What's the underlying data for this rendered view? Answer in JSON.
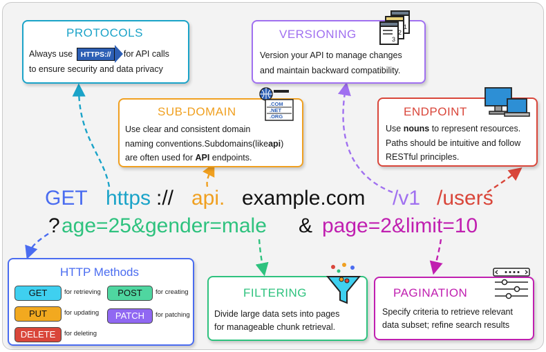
{
  "colors": {
    "protocols": "#1aa3c8",
    "subdomain": "#f0a020",
    "versioning": "#a070f0",
    "endpoint": "#d9463a",
    "methods": "#4a6cf0",
    "filtering": "#2ec27e",
    "pagination": "#c01fb0",
    "get_pill": "#3fd0f0",
    "post_pill": "#4fd6a0",
    "put_pill": "#f2a91f",
    "patch_pill": "#9068f2",
    "delete_pill": "#d9463a"
  },
  "url": {
    "method": "GET",
    "scheme": "https",
    "scheme_sep": "://",
    "subdomain": "api.",
    "domain": "example.com",
    "version": "/v1",
    "endpoint": "/users",
    "query_mark": "?",
    "filter_params": "age=25&gender=male",
    "amp": "&",
    "page_params": "page=2&limit=10"
  },
  "protocols": {
    "title": "PROTOCOLS",
    "line1_pre": "Always use",
    "badge": "HTTPS://",
    "line1_post": "for API calls",
    "line2": "to ensure security and data privacy",
    "icon": "https-arrow-icon"
  },
  "versioning": {
    "title": "VERSIONING",
    "line1": "Version your API to manage changes",
    "line2": "and maintain backward compatibility.",
    "icon": "stacked-documents-icon",
    "doc_numbers": [
      "1",
      "2",
      "3"
    ]
  },
  "subdomain": {
    "title": "SUB-DOMAIN",
    "line1": "Use clear and consistent domain",
    "line2": "naming conventions.Subdomains(like",
    "line2_bold": "api",
    "line2_end": ")",
    "line3_pre": "are often used for",
    "line3_bold": "API",
    "line3_post": "endpoints.",
    "icon": "domain-list-icon",
    "tlds": [
      ".COM",
      ".NET",
      ".ORG"
    ]
  },
  "endpoint": {
    "title": "ENDPOINT",
    "line1_pre": "Use",
    "line1_bold": "nouns",
    "line1_post": "to represent resources.",
    "line2": "Paths should be intuitive and follow",
    "line3": "RESTful principles.",
    "icon": "monitor-laptop-icon"
  },
  "methods": {
    "title": "HTTP Methods",
    "items": [
      {
        "label": "GET",
        "note": "for retrieving"
      },
      {
        "label": "POST",
        "note": "for creating"
      },
      {
        "label": "PUT",
        "note": "for updating"
      },
      {
        "label": "PATCH",
        "note": "for patching"
      },
      {
        "label": "DELETE",
        "note": "for deleting"
      }
    ]
  },
  "filtering": {
    "title": "FILTERING",
    "line1": "Divide large data sets into pages",
    "line2": "for manageable chunk retrieval.",
    "icon": "funnel-icon"
  },
  "pagination": {
    "title": "PAGINATION",
    "line1": "Specify criteria to retrieve relevant",
    "line2": "data subset; refine search results",
    "icon": "pagination-sliders-icon"
  }
}
